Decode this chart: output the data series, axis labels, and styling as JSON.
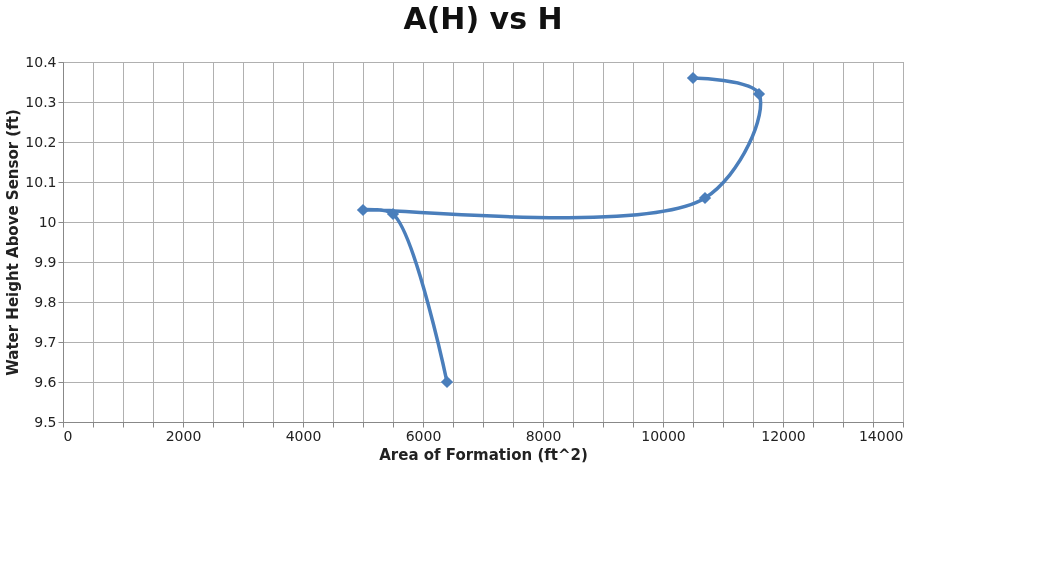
{
  "chart_data": {
    "type": "line",
    "title": "A(H) vs H",
    "xlabel": "Area of Formation (ft^2)",
    "ylabel": "Water Height Above Sensor (ft)",
    "x": [
      6400,
      5500,
      5000,
      10700,
      11600,
      10500
    ],
    "series": [
      {
        "color": "#4a7ebb",
        "values": [
          9.6,
          10.02,
          10.03,
          10.06,
          10.32,
          10.36
        ]
      }
    ],
    "xlim": [
      0,
      14000
    ],
    "xticks": [
      0,
      {
        "value": 500,
        "label": null
      },
      {
        "value": 1000,
        "label": null
      },
      {
        "value": 1500,
        "label": null
      },
      2000,
      {
        "value": 2500,
        "label": null
      },
      {
        "value": 3000,
        "label": null
      },
      {
        "value": 3500,
        "label": null
      },
      4000,
      {
        "value": 4500,
        "label": null
      },
      {
        "value": 5000,
        "label": null
      },
      {
        "value": 5500,
        "label": null
      },
      6000,
      {
        "value": 6500,
        "label": null
      },
      {
        "value": 7000,
        "label": null
      },
      {
        "value": 7500,
        "label": null
      },
      8000,
      {
        "value": 8500,
        "label": null
      },
      {
        "value": 9000,
        "label": null
      },
      {
        "value": 9500,
        "label": null
      },
      10000,
      {
        "value": 10500,
        "label": null
      },
      {
        "value": 11000,
        "label": null
      },
      {
        "value": 11500,
        "label": null
      },
      12000,
      {
        "value": 12500,
        "label": null
      },
      {
        "value": 13000,
        "label": null
      },
      {
        "value": 13500,
        "label": null
      },
      14000
    ],
    "ylim": [
      9.5,
      10.4
    ],
    "yticks": [
      9.5,
      9.6,
      9.7,
      9.8,
      9.9,
      10,
      10.1,
      10.2,
      10.3,
      10.4
    ],
    "grid": true,
    "marker": "diamond",
    "line_style": "solid"
  }
}
